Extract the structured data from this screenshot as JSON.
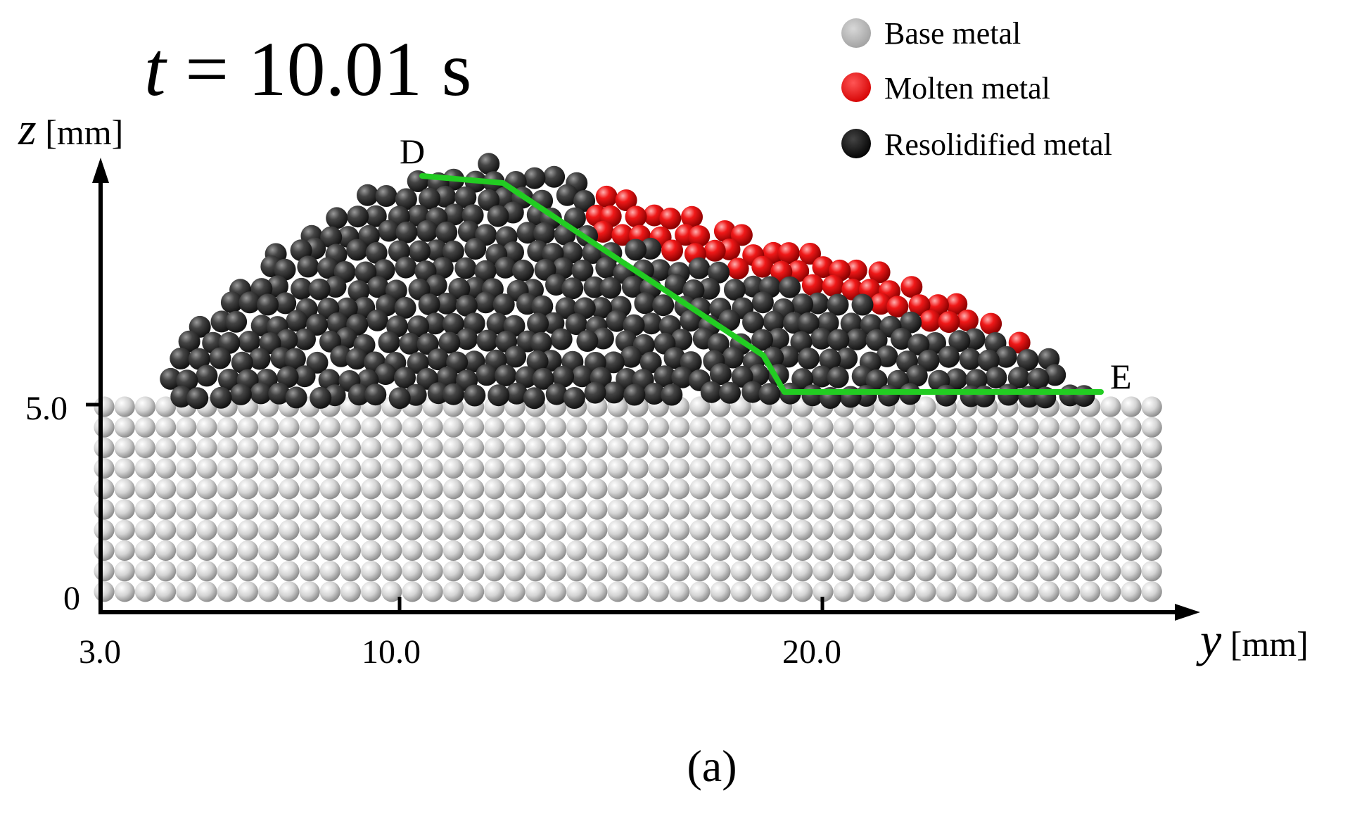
{
  "title": {
    "var": "t",
    "equals": " = ",
    "value": "10.01 s"
  },
  "axes": {
    "z_label": {
      "var": "z",
      "unit": " [mm]"
    },
    "y_label": {
      "var": "y",
      "unit": " [mm]"
    },
    "z_ticks": [
      "0",
      "5.0"
    ],
    "y_ticks": [
      "3.0",
      "10.0",
      "20.0"
    ]
  },
  "points": {
    "start": "D",
    "end": "E"
  },
  "legend": [
    {
      "label": "Base metal",
      "color": "#b3b3b3"
    },
    {
      "label": "Molten metal",
      "color": "#ee1111"
    },
    {
      "label": "Resolidified metal",
      "color": "#151515"
    }
  ],
  "panel_label": "(a)",
  "colors": {
    "boundary_line": "#22cc22",
    "base_particle": "#d2d2d2",
    "resolidified_particle": "#3a3a3a",
    "molten_particle": "#e41212"
  }
}
